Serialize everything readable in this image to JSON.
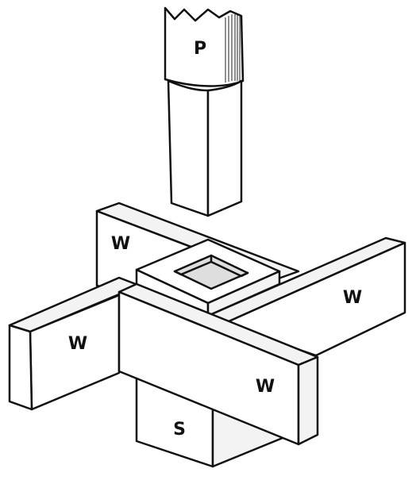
{
  "labels": {
    "punch": "P",
    "wall_back_left": "W",
    "wall_right": "W",
    "wall_left": "W",
    "wall_front": "W",
    "support": "S"
  }
}
